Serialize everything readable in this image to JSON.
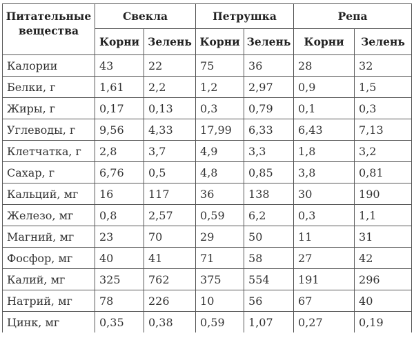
{
  "header": {
    "nutrient_label": "Питательные вещества",
    "groups": [
      "Свекла",
      "Петрушка",
      "Репа"
    ],
    "subcolumns": [
      "Корни",
      "Зелень",
      "Корни",
      "Зелень",
      "Корни",
      "Зелень"
    ]
  },
  "rows": [
    {
      "name": "Калории",
      "values": [
        "43",
        "22",
        "75",
        "36",
        "28",
        "32"
      ]
    },
    {
      "name": "Белки, г",
      "values": [
        "1,61",
        "2,2",
        "1,2",
        "2,97",
        "0,9",
        "1,5"
      ]
    },
    {
      "name": "Жиры, г",
      "values": [
        "0,17",
        "0,13",
        "0,3",
        "0,79",
        "0,1",
        "0,3"
      ]
    },
    {
      "name": "Углеводы, г",
      "values": [
        "9,56",
        "4,33",
        "17,99",
        "6,33",
        "6,43",
        "7,13"
      ]
    },
    {
      "name": "Клетчатка, г",
      "values": [
        "2,8",
        "3,7",
        "4,9",
        "3,3",
        "1,8",
        "3,2"
      ]
    },
    {
      "name": "Сахар, г",
      "values": [
        "6,76",
        "0,5",
        "4,8",
        "0,85",
        "3,8",
        "0,81"
      ]
    },
    {
      "name": "Кальций, мг",
      "values": [
        "16",
        "117",
        "36",
        "138",
        "30",
        "190"
      ]
    },
    {
      "name": "Железо, мг",
      "values": [
        "0,8",
        "2,57",
        "0,59",
        "6,2",
        "0,3",
        "1,1"
      ]
    },
    {
      "name": "Магний, мг",
      "values": [
        "23",
        "70",
        "29",
        "50",
        "11",
        "31"
      ]
    },
    {
      "name": "Фосфор, мг",
      "values": [
        "40",
        "41",
        "71",
        "58",
        "27",
        "42"
      ]
    },
    {
      "name": "Калий, мг",
      "values": [
        "325",
        "762",
        "375",
        "554",
        "191",
        "296"
      ]
    },
    {
      "name": "Натрий, мг",
      "values": [
        "78",
        "226",
        "10",
        "56",
        "67",
        "40"
      ]
    },
    {
      "name": "Цинк, мг",
      "values": [
        "0,35",
        "0,38",
        "0,59",
        "1,07",
        "0,27",
        "0,19"
      ]
    }
  ]
}
